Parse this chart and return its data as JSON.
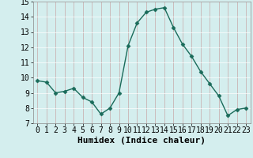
{
  "x": [
    0,
    1,
    2,
    3,
    4,
    5,
    6,
    7,
    8,
    9,
    10,
    11,
    12,
    13,
    14,
    15,
    16,
    17,
    18,
    19,
    20,
    21,
    22,
    23
  ],
  "y": [
    9.8,
    9.7,
    9.0,
    9.1,
    9.3,
    8.7,
    8.4,
    7.6,
    8.0,
    9.0,
    12.1,
    13.6,
    14.3,
    14.5,
    14.6,
    13.3,
    12.2,
    11.4,
    10.4,
    9.6,
    8.8,
    7.5,
    7.9,
    8.0
  ],
  "xlabel": "Humidex (Indice chaleur)",
  "xlim": [
    -0.5,
    23.5
  ],
  "ylim": [
    7,
    15
  ],
  "yticks": [
    7,
    8,
    9,
    10,
    11,
    12,
    13,
    14,
    15
  ],
  "xticks": [
    0,
    1,
    2,
    3,
    4,
    5,
    6,
    7,
    8,
    9,
    10,
    11,
    12,
    13,
    14,
    15,
    16,
    17,
    18,
    19,
    20,
    21,
    22,
    23
  ],
  "line_color": "#1a6b5a",
  "marker": "D",
  "marker_size": 2.5,
  "bg_color": "#d4eeee",
  "grid_color": "#c8c8c8",
  "xlabel_fontsize": 8,
  "tick_fontsize": 7
}
